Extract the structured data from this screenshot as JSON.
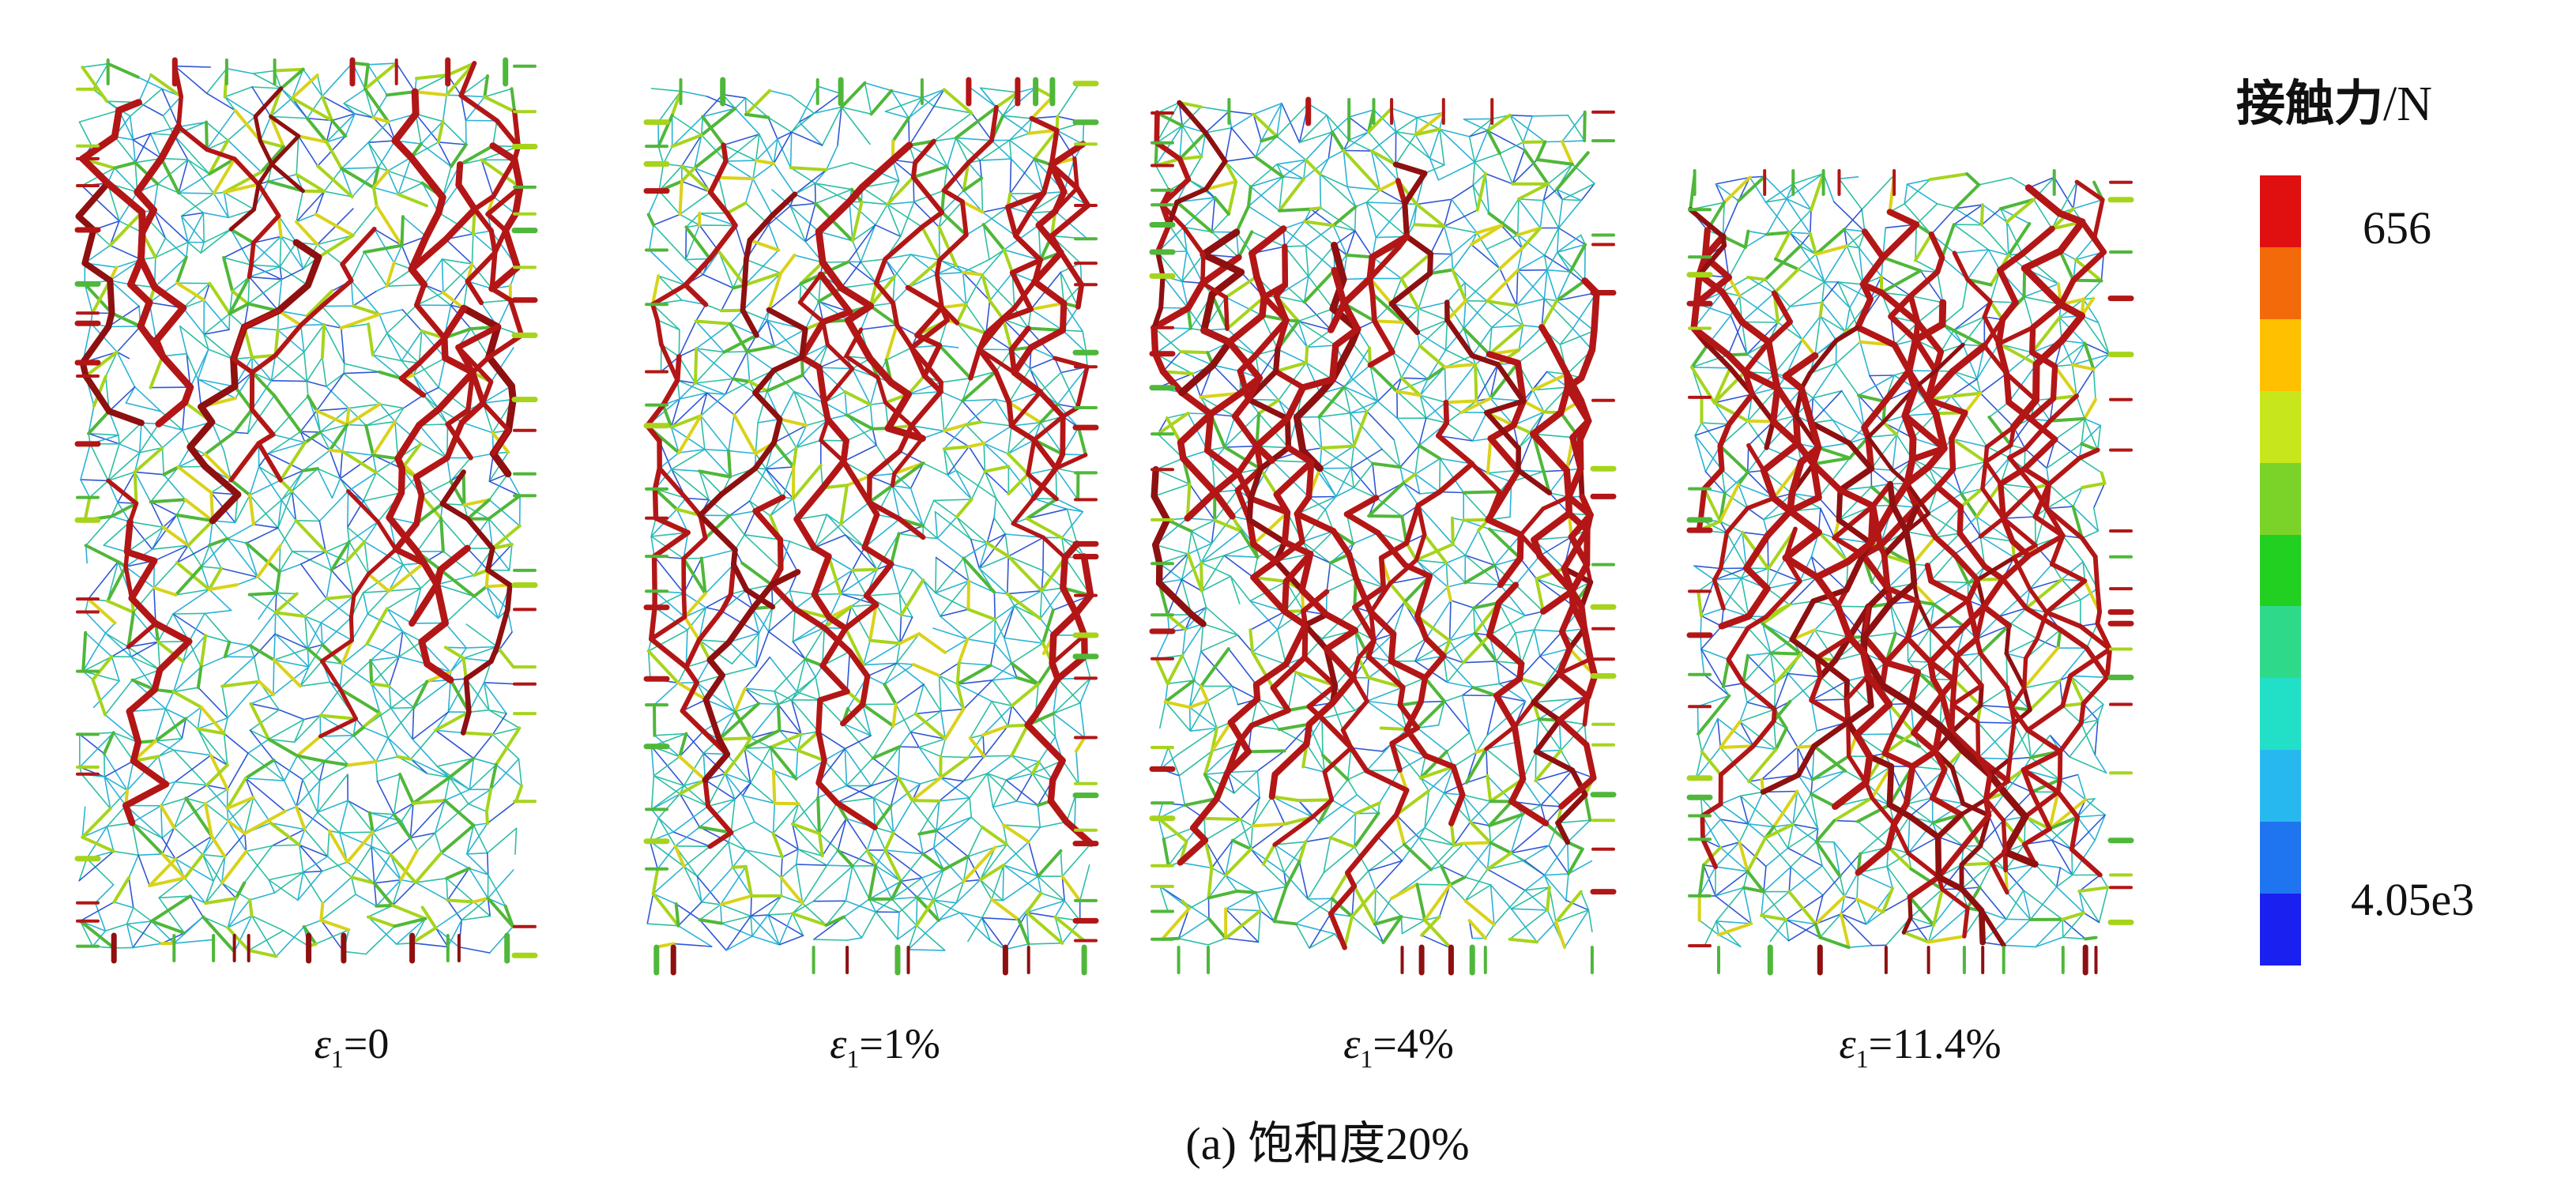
{
  "legend": {
    "title": "接触力",
    "unit": "/N",
    "max_label": "656",
    "min_label": "4.05e3",
    "colors": [
      "#e01010",
      "#f26a0a",
      "#ffc000",
      "#c8e61c",
      "#7bd32a",
      "#22d022",
      "#2fd98a",
      "#22e0c8",
      "#27b8f0",
      "#1f74f0",
      "#1a20f0"
    ]
  },
  "panels": [
    {
      "symbol": "ε",
      "subscript": "1",
      "value": "=0"
    },
    {
      "symbol": "ε",
      "subscript": "1",
      "value": "=1%"
    },
    {
      "symbol": "ε",
      "subscript": "1",
      "value": "=4%"
    },
    {
      "symbol": "ε",
      "subscript": "1",
      "value": "=11.4%"
    }
  ],
  "caption": "(a) 饱和度20%"
}
